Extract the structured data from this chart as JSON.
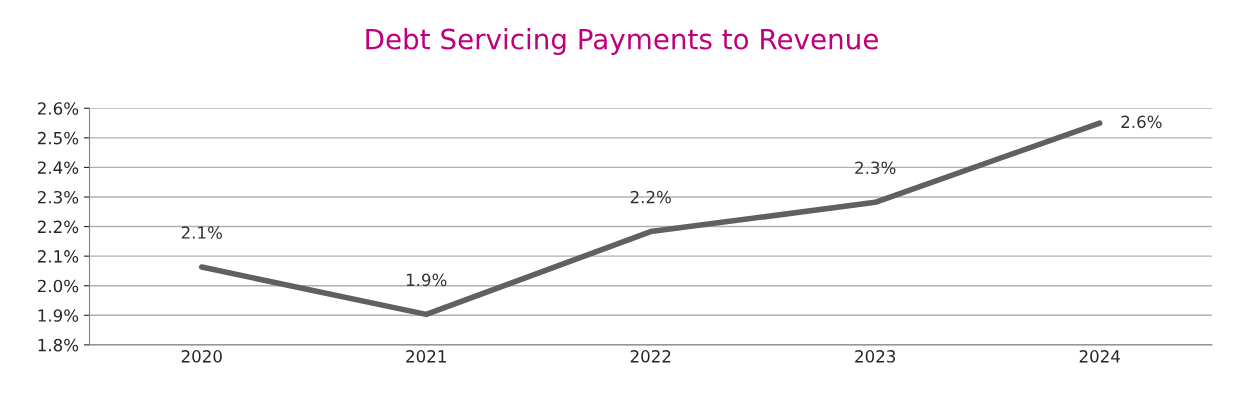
{
  "chart_data": {
    "type": "line",
    "title": "Debt Servicing Payments to Revenue",
    "categories": [
      "2020",
      "2021",
      "2022",
      "2023",
      "2024"
    ],
    "series": [
      {
        "color": "#606060",
        "values": [
          2.063,
          1.903,
          2.183,
          2.282,
          2.55
        ],
        "value_labels": [
          "2.1%",
          "1.9%",
          "2.2%",
          "2.3%",
          "2.6%"
        ]
      }
    ],
    "ylim": [
      1.8,
      2.6
    ],
    "yticks": [
      {
        "value": 1.8,
        "label": "1.8%"
      },
      {
        "value": 1.9,
        "label": "1.9%"
      },
      {
        "value": 2.0,
        "label": "2.0%"
      },
      {
        "value": 2.1,
        "label": "2.1%"
      },
      {
        "value": 2.2,
        "label": "2.2%"
      },
      {
        "value": 2.3,
        "label": "2.3%"
      },
      {
        "value": 2.4,
        "label": "2.4%"
      },
      {
        "value": 2.5,
        "label": "2.5%"
      },
      {
        "value": 2.6,
        "label": "2.6%"
      }
    ],
    "grid": "y",
    "marker": "none",
    "line_style": "solid",
    "legend": false
  }
}
